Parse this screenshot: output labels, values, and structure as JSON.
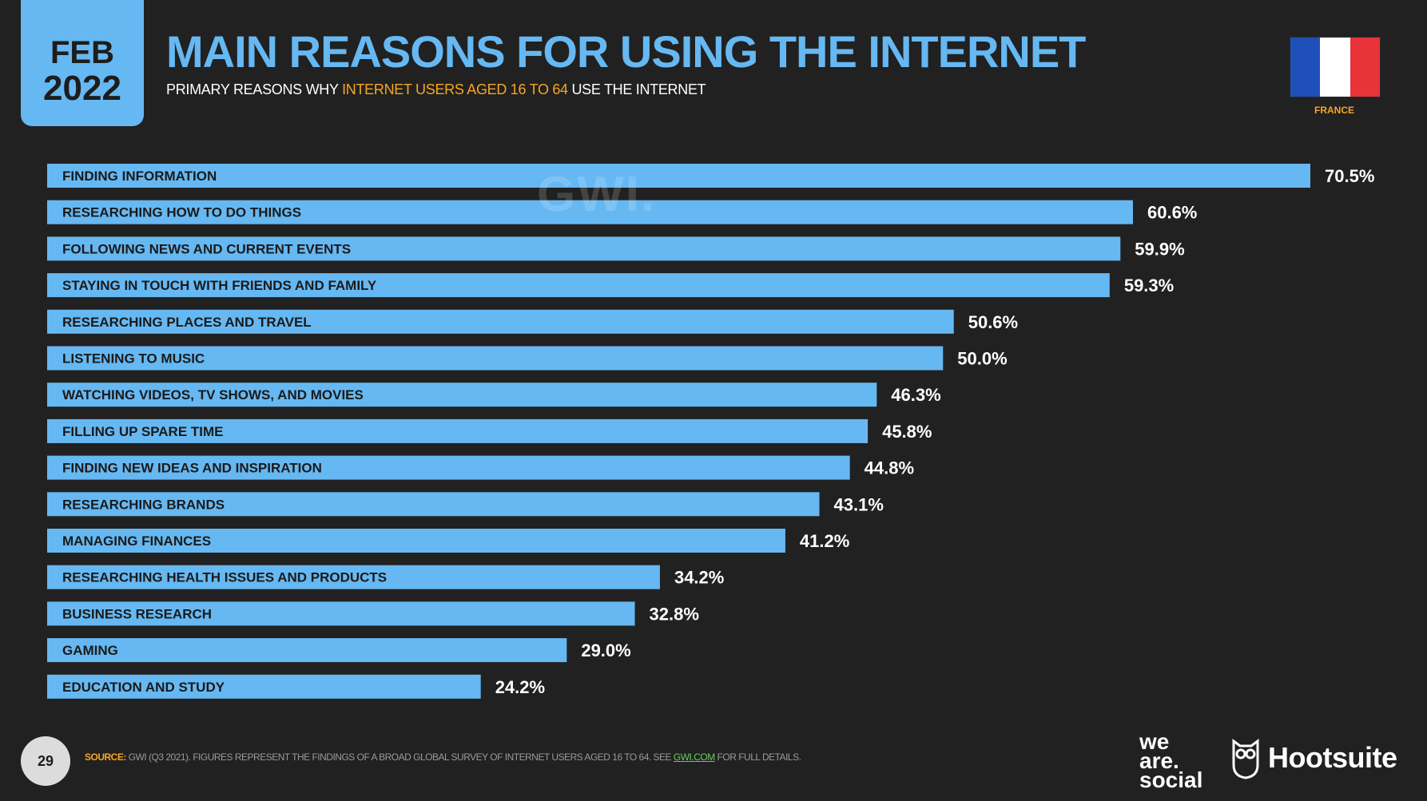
{
  "header": {
    "month": "FEB",
    "year": "2022",
    "title": "MAIN REASONS FOR USING THE INTERNET",
    "subtitle_pre": "PRIMARY REASONS WHY ",
    "subtitle_highlight": "INTERNET USERS AGED 16 TO 64",
    "subtitle_post": " USE THE INTERNET"
  },
  "country": {
    "label": "FRANCE",
    "flag_colors": [
      "#1f4fb8",
      "#ffffff",
      "#e8333b"
    ]
  },
  "watermark": "GWI.",
  "chart_data": {
    "type": "bar",
    "orientation": "horizontal",
    "title": "MAIN REASONS FOR USING THE INTERNET",
    "xlim": [
      0,
      75
    ],
    "categories": [
      "FINDING INFORMATION",
      "RESEARCHING HOW TO DO THINGS",
      "FOLLOWING NEWS AND CURRENT EVENTS",
      "STAYING IN TOUCH WITH FRIENDS AND FAMILY",
      "RESEARCHING PLACES AND TRAVEL",
      "LISTENING TO MUSIC",
      "WATCHING VIDEOS, TV SHOWS, AND MOVIES",
      "FILLING UP SPARE TIME",
      "FINDING NEW IDEAS AND INSPIRATION",
      "RESEARCHING BRANDS",
      "MANAGING FINANCES",
      "RESEARCHING HEALTH ISSUES AND PRODUCTS",
      "BUSINESS RESEARCH",
      "GAMING",
      "EDUCATION AND STUDY"
    ],
    "values": [
      70.5,
      60.6,
      59.9,
      59.3,
      50.6,
      50.0,
      46.3,
      45.8,
      44.8,
      43.1,
      41.2,
      34.2,
      32.8,
      29.0,
      24.2
    ],
    "value_labels": [
      "70.5%",
      "60.6%",
      "59.9%",
      "59.3%",
      "50.6%",
      "50.0%",
      "46.3%",
      "45.8%",
      "44.8%",
      "43.1%",
      "41.2%",
      "34.2%",
      "32.8%",
      "29.0%",
      "24.2%"
    ],
    "bar_color": "#66b8f2"
  },
  "footer": {
    "page_number": "29",
    "source_label": "SOURCE:",
    "source_text": " GWI (Q3 2021). FIGURES REPRESENT THE FINDINGS OF A BROAD GLOBAL SURVEY OF INTERNET USERS AGED 16 TO 64. SEE ",
    "source_link": "GWI.COM",
    "source_tail": " FOR FULL DETAILS.",
    "logo_line1": "we",
    "logo_line2": "are.",
    "logo_line3": "social",
    "logo_hootsuite": "Hootsuite"
  }
}
